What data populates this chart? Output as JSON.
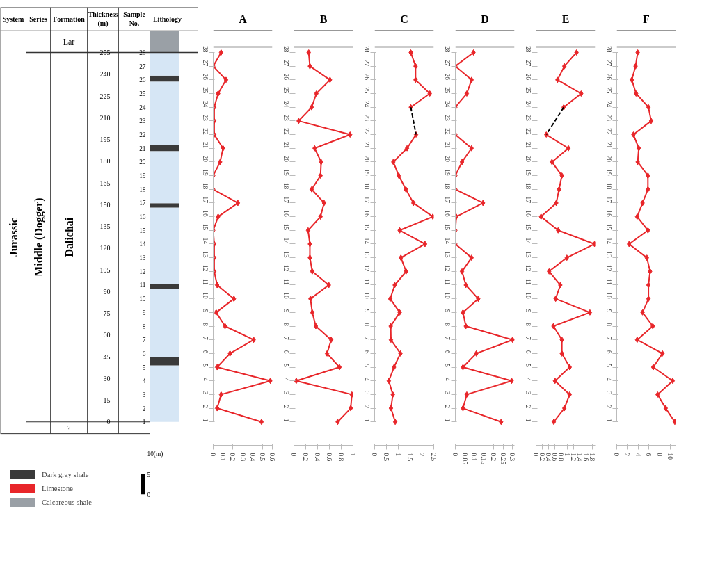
{
  "chart_data": [
    {
      "type": "bar",
      "stacked": true,
      "ref_lines": [
        {
          "axis": "y",
          "value": 255,
          "color": "#333333"
        }
      ],
      "categories": [
        null
      ],
      "legend": "bottom left",
      "ylabel": "Thickness (m)",
      "ylim": [
        0,
        270
      ],
      "yticks": [
        0,
        15,
        30,
        45,
        60,
        75,
        90,
        105,
        120,
        135,
        150,
        165,
        180,
        195,
        210,
        225,
        240,
        255
      ],
      "annotations": [
        "System",
        "Series",
        "Formation",
        "Sample No.",
        "Lithology",
        "Lar",
        "Jurassic",
        "Middle (Dogger)",
        "Dalichai",
        "?",
        "10(m)",
        "5",
        "0",
        "28",
        "27",
        "26",
        "25",
        "24",
        "23",
        "22",
        "21",
        "20",
        "19",
        "18",
        "17",
        "16",
        "15",
        "14",
        "13",
        "12",
        "11",
        "10",
        "9",
        "8",
        "7",
        "6",
        "5",
        "4",
        "3",
        "2",
        "1"
      ],
      "series": [
        {
          "color": "#d6e6f5",
          "values": [
            39
          ]
        },
        {
          "name": "Dark gray shale",
          "color": "#3a3a3a",
          "values": [
            6
          ]
        },
        {
          "color": "#d6e6f5",
          "values": [
            47
          ]
        },
        {
          "color": "#3a3a3a",
          "values": [
            3
          ]
        },
        {
          "color": "#d6e6f5",
          "values": [
            53
          ]
        },
        {
          "color": "#3a3a3a",
          "values": [
            3
          ]
        },
        {
          "color": "#d6e6f5",
          "values": [
            36
          ]
        },
        {
          "color": "#3a3a3a",
          "values": [
            4
          ]
        },
        {
          "color": "#d6e6f5",
          "values": [
            44
          ]
        },
        {
          "color": "#3a3a3a",
          "values": [
            4
          ]
        },
        {
          "color": "#d6e6f5",
          "values": [
            16
          ]
        },
        {
          "name": "Limestone",
          "color": "#e8262a",
          "values": [
            0
          ]
        },
        {
          "name": "Calcareous shale",
          "color": "#9aa0a6",
          "values": [
            15
          ]
        }
      ]
    },
    {
      "type": "line",
      "title": "A",
      "orientation": "horizontal",
      "marker": "diamond",
      "categories": [
        "28",
        "27",
        "26",
        "25",
        "24",
        "23",
        "22",
        "21",
        "20",
        "19",
        "18",
        "17",
        "16",
        "15",
        "14",
        "13",
        "12",
        "11",
        "10",
        "9",
        "8",
        "7",
        "6",
        "5",
        "4",
        "3",
        "2",
        "1"
      ],
      "xlim": [
        0,
        0.6
      ],
      "xticks": [
        0,
        0.1,
        0.2,
        0.3,
        0.4,
        0.5,
        0.6
      ],
      "series": [
        {
          "color": "#e8262a",
          "values": [
            0.08,
            0,
            0.13,
            0.05,
            0.01,
            0.01,
            0.01,
            0.1,
            0.07,
            0,
            0,
            0.25,
            0.05,
            0,
            0.01,
            0.01,
            0.01,
            0.04,
            0.21,
            0.03,
            0.12,
            0.41,
            0.17,
            0.04,
            0.58,
            0.08,
            0.04,
            0.49
          ]
        }
      ]
    },
    {
      "type": "line",
      "title": "B",
      "orientation": "horizontal",
      "marker": "diamond",
      "categories": [
        "28",
        "27",
        "26",
        "25",
        "24",
        "23",
        "22",
        "21",
        "20",
        "19",
        "18",
        "17",
        "16",
        "15",
        "14",
        "13",
        "12",
        "11",
        "10",
        "9",
        "8",
        "7",
        "6",
        "5",
        "4",
        "3",
        "2",
        "1"
      ],
      "xlim": [
        0,
        1
      ],
      "xticks": [
        0,
        0.2,
        0.4,
        0.6,
        0.8,
        1
      ],
      "series": [
        {
          "color": "#e8262a",
          "values": [
            0.25,
            0.27,
            0.61,
            0.38,
            0.3,
            0.08,
            0.95,
            0.35,
            0.46,
            0.45,
            0.3,
            0.51,
            0.45,
            0.24,
            0.27,
            0.27,
            0.31,
            0.59,
            0.28,
            0.31,
            0.37,
            0.63,
            0.56,
            0.77,
            0.04,
            0.98,
            0.96,
            0.74
          ]
        }
      ]
    },
    {
      "type": "line",
      "title": "C",
      "orientation": "horizontal",
      "marker": "diamond",
      "categories": [
        "28",
        "27",
        "26",
        "25",
        "24",
        "23",
        "22",
        "21",
        "20",
        "19",
        "18",
        "17",
        "16",
        "15",
        "14",
        "13",
        "12",
        "11",
        "10",
        "9",
        "8",
        "7",
        "6",
        "5",
        "4",
        "3",
        "2",
        "1"
      ],
      "xlim": [
        0,
        2.5
      ],
      "xticks": [
        0,
        0.5,
        1,
        1.5,
        2,
        2.5
      ],
      "series": [
        {
          "color": "#e8262a",
          "values": [
            1.53,
            1.73,
            1.73,
            2.33,
            1.53,
            null,
            1.75,
            1.37,
            0.79,
            1.02,
            1.32,
            1.64,
            2.46,
            1.06,
            2.13,
            1.11,
            1.33,
            0.85,
            0.66,
            1.06,
            0.68,
            0.69,
            1.09,
            0.82,
            0.6,
            0.77,
            0.69,
            0.87
          ]
        },
        {
          "color": "#000000",
          "line_style": "dashed",
          "marker": "none",
          "values": [
            null,
            null,
            null,
            null,
            1.53,
            null,
            1.75,
            null,
            null,
            null,
            null,
            null,
            null,
            null,
            null,
            null,
            null,
            null,
            null,
            null,
            null,
            null,
            null,
            null,
            null,
            null,
            null,
            null
          ]
        }
      ]
    },
    {
      "type": "line",
      "title": "D",
      "orientation": "horizontal",
      "marker": "diamond",
      "categories": [
        "28",
        "27",
        "26",
        "25",
        "24",
        "23",
        "22",
        "21",
        "20",
        "19",
        "18",
        "17",
        "16",
        "15",
        "14",
        "13",
        "12",
        "11",
        "10",
        "9",
        "8",
        "7",
        "6",
        "5",
        "4",
        "3",
        "2",
        "1"
      ],
      "xlim": [
        0,
        0.31
      ],
      "xticks": [
        0,
        0.05,
        0.1,
        0.15,
        0.2,
        0.25,
        0.3
      ],
      "series": [
        {
          "color": "#e8262a",
          "values": [
            0.095,
            0,
            0.085,
            0.06,
            0,
            null,
            0,
            0.085,
            0.035,
            0,
            0,
            0.145,
            0.005,
            0,
            0,
            0.085,
            0.035,
            0.055,
            0.12,
            0.04,
            0.055,
            0.3,
            0.11,
            0.04,
            0.295,
            0.06,
            0.04,
            0.24
          ]
        },
        {
          "color": "#000000",
          "line_style": "dashed",
          "marker": "none",
          "values": [
            null,
            null,
            null,
            null,
            0,
            null,
            0,
            null,
            null,
            null,
            null,
            null,
            null,
            null,
            null,
            null,
            null,
            null,
            null,
            null,
            null,
            null,
            null,
            null,
            null,
            null,
            null,
            null
          ]
        }
      ]
    },
    {
      "type": "line",
      "title": "E",
      "orientation": "horizontal",
      "marker": "diamond",
      "categories": [
        "28",
        "27",
        "26",
        "25",
        "24",
        "23",
        "22",
        "21",
        "20",
        "19",
        "18",
        "17",
        "16",
        "15",
        "14",
        "13",
        "12",
        "11",
        "10",
        "9",
        "8",
        "7",
        "6",
        "5",
        "4",
        "3",
        "2",
        "1"
      ],
      "xlim": [
        0,
        1.9
      ],
      "xticks": [
        0,
        0.2,
        0.4,
        0.6,
        0.8,
        1,
        1.2,
        1.4,
        1.6,
        1.8
      ],
      "series": [
        {
          "color": "#e8262a",
          "values": [
            1.3,
            0.91,
            0.69,
            1.45,
            0.89,
            null,
            0.33,
            1.04,
            0.51,
            0.83,
            0.74,
            0.65,
            0.16,
            0.71,
            1.88,
            0.99,
            0.42,
            0.78,
            0.63,
            1.73,
            0.56,
            0.83,
            0.83,
            1.08,
            0.61,
            1.08,
            0.91,
            0.57
          ]
        },
        {
          "color": "#000000",
          "line_style": "dashed",
          "marker": "none",
          "values": [
            null,
            null,
            null,
            null,
            0.89,
            null,
            0.33,
            null,
            null,
            null,
            null,
            null,
            null,
            null,
            null,
            null,
            null,
            null,
            null,
            null,
            null,
            null,
            null,
            null,
            null,
            null,
            null,
            null
          ]
        }
      ]
    },
    {
      "type": "line",
      "title": "F",
      "orientation": "horizontal",
      "marker": "diamond",
      "categories": [
        "28",
        "27",
        "26",
        "25",
        "24",
        "23",
        "22",
        "21",
        "20",
        "19",
        "18",
        "17",
        "16",
        "15",
        "14",
        "13",
        "12",
        "11",
        "10",
        "9",
        "8",
        "7",
        "6",
        "5",
        "4",
        "3",
        "2",
        "1"
      ],
      "xlim": [
        0,
        11
      ],
      "xticks": [
        0,
        2,
        4,
        6,
        8,
        10
      ],
      "series": [
        {
          "color": "#e8262a",
          "values": [
            3.9,
            3.5,
            2.8,
            3.6,
            5.9,
            6.4,
            3.1,
            4.1,
            3.9,
            5.8,
            5.8,
            4.8,
            3.8,
            5.8,
            2.3,
            5.6,
            6.2,
            5.9,
            5.9,
            4.8,
            6.7,
            3.8,
            8.5,
            6.8,
            10.4,
            7.6,
            9.1,
            10.8
          ]
        }
      ]
    }
  ]
}
